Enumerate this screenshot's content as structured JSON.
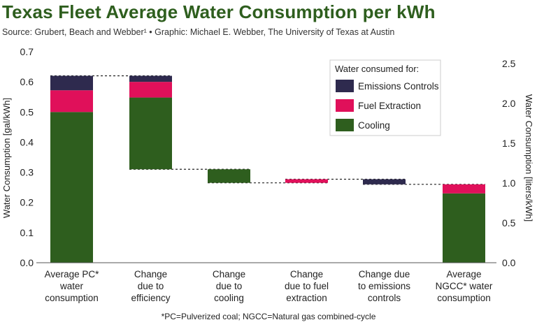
{
  "title": "Texas Fleet Average Water Consumption per kWh",
  "subtitle": "Source: Grubert, Beach and Webber¹ • Graphic: Michael E. Webber, The University of Texas at Austin",
  "footnote": "*PC=Pulverized coal; NGCC=Natural gas combined-cycle",
  "colors": {
    "cooling": "#2e5e1e",
    "fuel": "#e0105a",
    "emissions": "#2e2a4e"
  },
  "chart_data": {
    "type": "bar",
    "subtype": "waterfall-stacked",
    "title": "Texas Fleet Average Water Consumption per kWh",
    "ylabel": "Water Consumption [gal/kWh]",
    "ylabel_right": "Water Consumption [liters/kWh]",
    "ylim": [
      0,
      0.7
    ],
    "ylim_right": [
      0,
      2.65
    ],
    "yticks": [
      "0.0",
      "0.1",
      "0.2",
      "0.3",
      "0.4",
      "0.5",
      "0.6",
      "0.7"
    ],
    "yticks_right": [
      "0.0",
      "0.5",
      "1.0",
      "1.5",
      "2.0",
      "2.5"
    ],
    "grid": false,
    "legend_position": "top-right",
    "legend_title": "Water consumed for:",
    "categories": [
      "Average PC* water consumption",
      "Change due to efficiency",
      "Change due to cooling",
      "Change due to fuel extraction",
      "Change due to emissions controls",
      "Average NGCC* water consumption"
    ],
    "category_lines": [
      [
        "Average PC*",
        "water",
        "consumption"
      ],
      [
        "Change",
        "due to",
        "efficiency"
      ],
      [
        "Change",
        "due to",
        "cooling"
      ],
      [
        "Change",
        "due to fuel",
        "extraction"
      ],
      [
        "Change due",
        "to emissions",
        "controls"
      ],
      [
        "Average",
        "NGCC* water",
        "consumption"
      ]
    ],
    "bars": [
      {
        "segments": [
          {
            "series": "Cooling",
            "from": 0.0,
            "to": 0.5
          },
          {
            "series": "Fuel Extraction",
            "from": 0.5,
            "to": 0.572
          },
          {
            "series": "Emissions Controls",
            "from": 0.572,
            "to": 0.62
          }
        ]
      },
      {
        "segments": [
          {
            "series": "Cooling",
            "from": 0.31,
            "to": 0.548
          },
          {
            "series": "Fuel Extraction",
            "from": 0.548,
            "to": 0.6
          },
          {
            "series": "Emissions Controls",
            "from": 0.6,
            "to": 0.62
          }
        ]
      },
      {
        "segments": [
          {
            "series": "Cooling",
            "from": 0.265,
            "to": 0.31
          }
        ]
      },
      {
        "segments": [
          {
            "series": "Fuel Extraction",
            "from": 0.265,
            "to": 0.277
          }
        ]
      },
      {
        "segments": [
          {
            "series": "Emissions Controls",
            "from": 0.26,
            "to": 0.277
          }
        ]
      },
      {
        "segments": [
          {
            "series": "Cooling",
            "from": 0.0,
            "to": 0.23
          },
          {
            "series": "Fuel Extraction",
            "from": 0.23,
            "to": 0.26
          }
        ]
      }
    ],
    "connectors": [
      {
        "from_bar": 0,
        "to_bar": 1,
        "y": 0.62
      },
      {
        "from_bar": 1,
        "to_bar": 2,
        "y": 0.31
      },
      {
        "from_bar": 2,
        "to_bar": 3,
        "y": 0.265
      },
      {
        "from_bar": 3,
        "to_bar": 4,
        "y": 0.277
      },
      {
        "from_bar": 4,
        "to_bar": 5,
        "y": 0.26
      }
    ],
    "series": [
      {
        "name": "Emissions Controls",
        "color": "#2e2a4e"
      },
      {
        "name": "Fuel Extraction",
        "color": "#e0105a"
      },
      {
        "name": "Cooling",
        "color": "#2e5e1e"
      }
    ]
  }
}
